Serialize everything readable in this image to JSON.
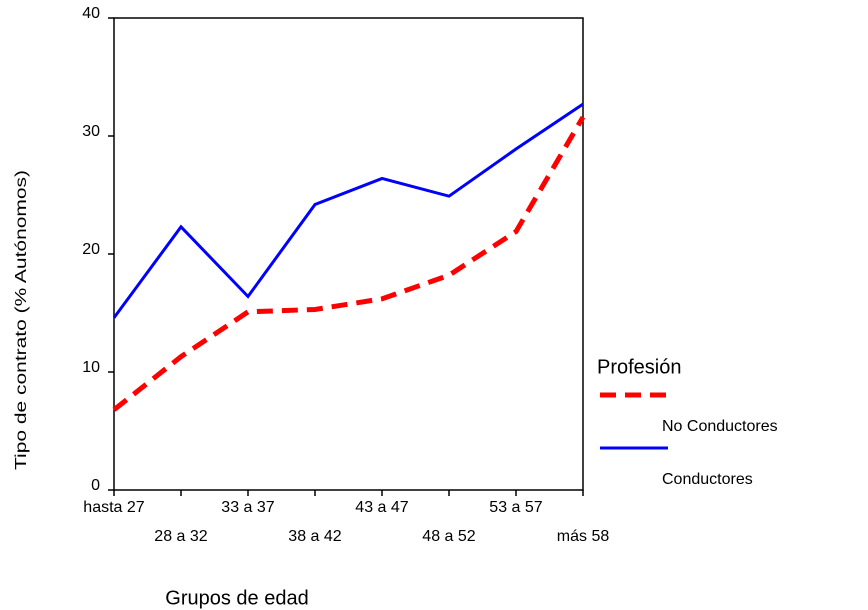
{
  "chart_data": {
    "type": "line",
    "y_label": "Tipo de contrato (% Autónomos)",
    "x_label": "Grupos de edad",
    "legend_title": "Profesión",
    "categories": [
      "hasta 27",
      "28 a 32",
      "33 a 37",
      "38 a 42",
      "43 a 47",
      "48 a 52",
      "53 a 57",
      "más 58"
    ],
    "series": [
      {
        "name": "No Conductores",
        "color": "#ff0000",
        "dashed": true,
        "values": [
          6.8,
          11.3,
          15.1,
          15.3,
          16.2,
          18.2,
          21.9,
          31.6
        ]
      },
      {
        "name": "Conductores",
        "color": "#0000ff",
        "dashed": false,
        "values": [
          14.6,
          22.3,
          16.4,
          24.2,
          26.4,
          24.9,
          28.9,
          32.7
        ]
      }
    ],
    "ylim": [
      0,
      40
    ],
    "yticks": [
      0,
      10,
      20,
      30,
      40
    ]
  }
}
